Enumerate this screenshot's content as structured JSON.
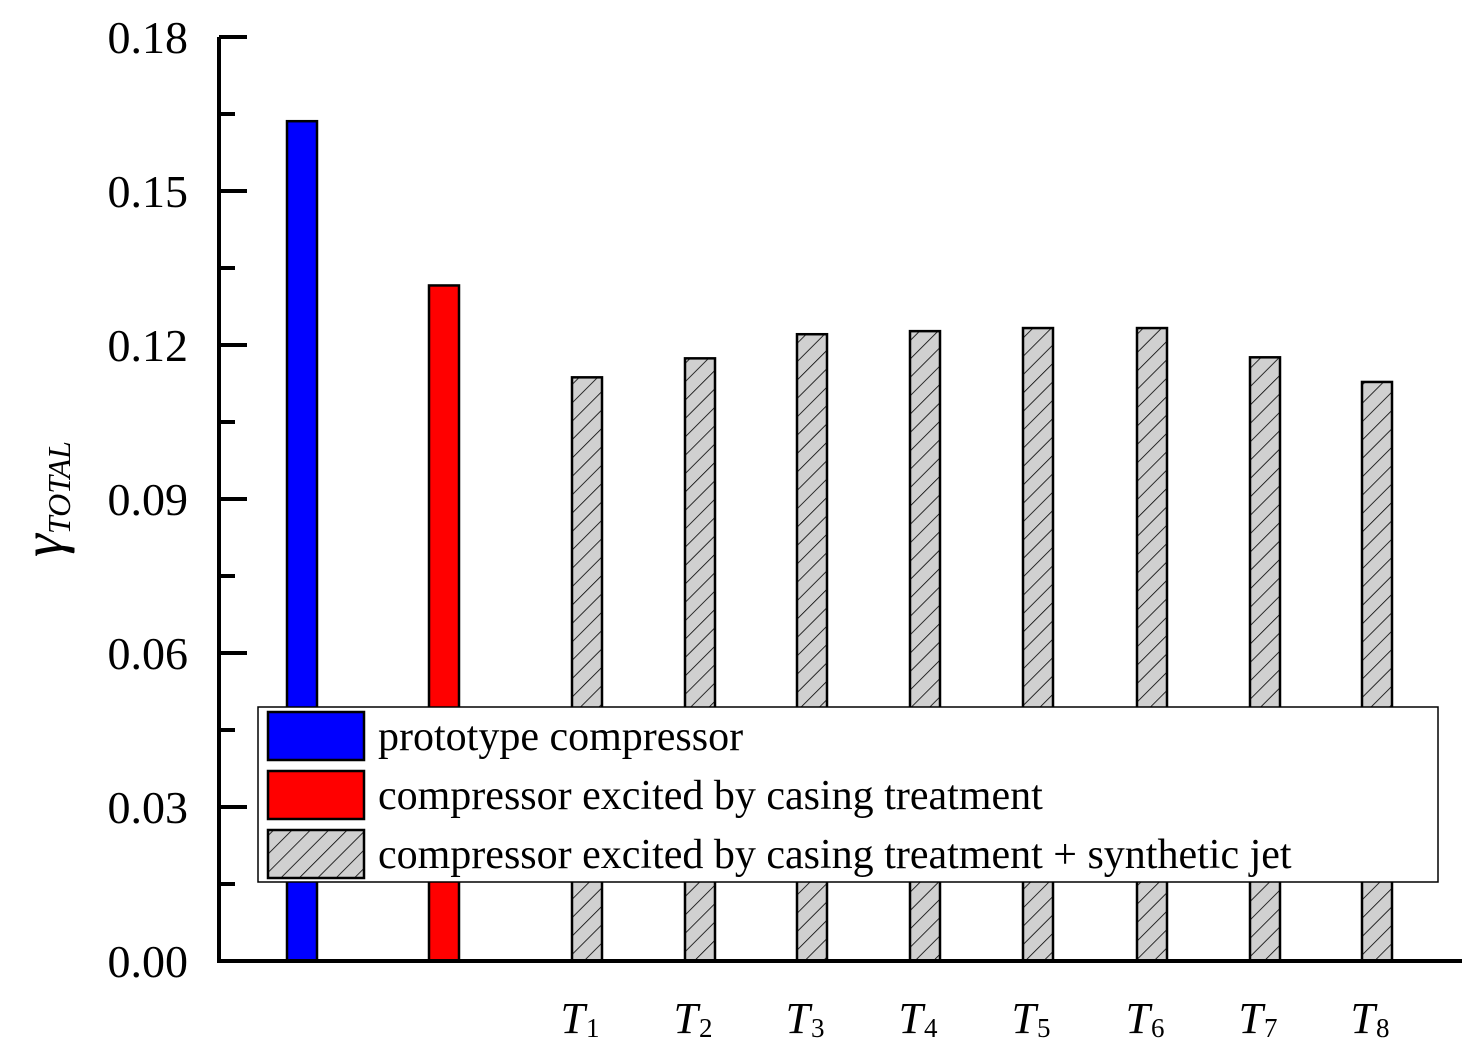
{
  "chart_data": {
    "type": "bar",
    "title": "",
    "xlabel": "",
    "ylabel": {
      "symbol": "γ",
      "subscript": "TOTAL"
    },
    "ylim": [
      0,
      0.18
    ],
    "yticks": [
      "0.00",
      "0.03",
      "0.06",
      "0.09",
      "0.12",
      "0.15",
      "0.18"
    ],
    "ytick_values": [
      0,
      0.03,
      0.06,
      0.09,
      0.12,
      0.15,
      0.18
    ],
    "categories": [
      {
        "main": "",
        "sub": ""
      },
      {
        "main": "",
        "sub": ""
      },
      {
        "main": "T",
        "sub": "1"
      },
      {
        "main": "T",
        "sub": "2"
      },
      {
        "main": "T",
        "sub": "3"
      },
      {
        "main": "T",
        "sub": "4"
      },
      {
        "main": "T",
        "sub": "5"
      },
      {
        "main": "T",
        "sub": "6"
      },
      {
        "main": "T",
        "sub": "7"
      },
      {
        "main": "T",
        "sub": "8"
      }
    ],
    "values": [
      0.1636,
      0.1316,
      0.1137,
      0.1174,
      0.1221,
      0.1227,
      0.1233,
      0.1233,
      0.1176,
      0.1128
    ],
    "bar_series": [
      0,
      1,
      2,
      2,
      2,
      2,
      2,
      2,
      2,
      2
    ],
    "series": [
      {
        "name": "prototype compressor",
        "color": "#0000ff",
        "pattern": "solid"
      },
      {
        "name": "compressor excited by casing treatment",
        "color": "#ff0000",
        "pattern": "solid"
      },
      {
        "name": "compressor excited by casing treatment + synthetic jet",
        "color": "#d0d0d0",
        "pattern": "hatch"
      }
    ],
    "legend_position": "lower-right",
    "grid": false
  }
}
